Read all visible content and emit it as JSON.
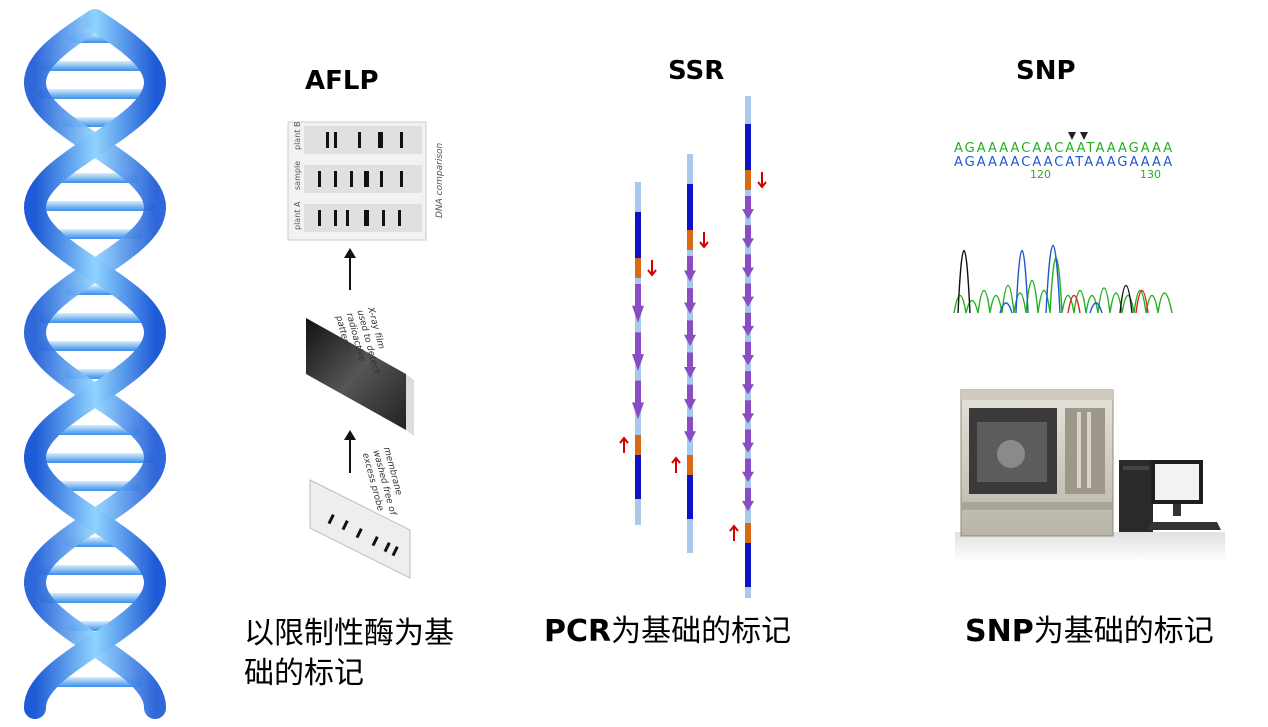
{
  "sections": {
    "aflp": {
      "title": "AFLP",
      "caption_line1": "以限制性酶为基",
      "caption_line2": "础的标记",
      "gel": {
        "rows": [
          "plant B",
          "sample",
          "plant A"
        ],
        "side_label": "DNA comparison"
      },
      "film_label": [
        "X-ray film",
        "used to detect",
        "radioactive",
        "pattern"
      ],
      "membrane_label": [
        "membrane",
        "washed free of",
        "excess probe"
      ]
    },
    "ssr": {
      "title": "SSR",
      "caption_bold": "PCR",
      "caption_rest": "为基础的标记"
    },
    "snp": {
      "title": "SNP",
      "caption_bold": "SNP",
      "caption_rest": "为基础的标记",
      "sequence": {
        "line1": "AGAAAACAACAATAAAGAAA",
        "line2": "AGAAAACAACATAAAGAAAA",
        "pos1": "120",
        "pos2": "130"
      }
    }
  },
  "colors": {
    "helix_dark": "#1e5bd6",
    "helix_light": "#7ec8f5",
    "strand": "#a8c8ec",
    "flank": "#1010c8",
    "primer": "#d86a14",
    "repeat_arrow": "#8a4cc2",
    "primer_arrow": "#d40000",
    "trace_green": "#22b022",
    "trace_blue": "#2255d0",
    "trace_black": "#111111",
    "trace_red": "#dd2222"
  }
}
